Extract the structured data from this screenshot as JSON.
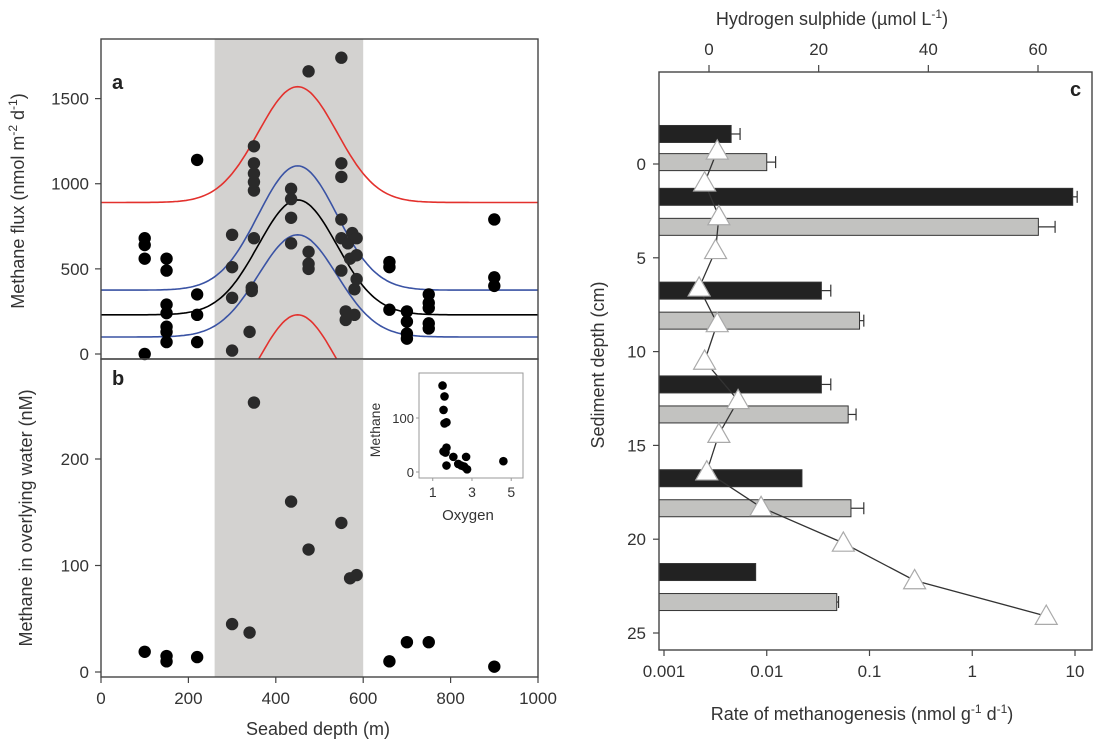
{
  "chart_data": [
    {
      "panel": "a",
      "type": "scatter",
      "title": "",
      "xlabel": "Seabed depth (m)",
      "ylabel": "Methane flux (nmol m-2 d-1)",
      "ylabel_parts": {
        "base": "Methane flux (nmol m",
        "sup1": "-2",
        "mid": " d",
        "sup2": "-1",
        "end": ")"
      },
      "xlim": [
        0,
        1000
      ],
      "ylim": [
        0,
        1850
      ],
      "xticks": [
        0,
        200,
        400,
        600,
        800,
        1000
      ],
      "yticks": [
        0,
        500,
        1000,
        1500
      ],
      "ytick_labels": [
        "0",
        "500",
        "1000",
        "1500"
      ],
      "shaded_region": {
        "x_from": 260,
        "x_to": 600,
        "color": "#d3d2d0"
      },
      "points": [
        [
          100,
          0
        ],
        [
          100,
          560
        ],
        [
          100,
          640
        ],
        [
          100,
          680
        ],
        [
          150,
          70
        ],
        [
          150,
          130
        ],
        [
          150,
          160
        ],
        [
          150,
          240
        ],
        [
          150,
          290
        ],
        [
          150,
          490
        ],
        [
          150,
          560
        ],
        [
          220,
          70
        ],
        [
          220,
          230
        ],
        [
          220,
          350
        ],
        [
          220,
          1140
        ],
        [
          300,
          20
        ],
        [
          300,
          330
        ],
        [
          300,
          510
        ],
        [
          300,
          700
        ],
        [
          340,
          130
        ],
        [
          345,
          370
        ],
        [
          345,
          390
        ],
        [
          350,
          680
        ],
        [
          350,
          960
        ],
        [
          350,
          1010
        ],
        [
          350,
          1060
        ],
        [
          350,
          1120
        ],
        [
          350,
          1220
        ],
        [
          435,
          650
        ],
        [
          435,
          800
        ],
        [
          435,
          910
        ],
        [
          435,
          970
        ],
        [
          475,
          500
        ],
        [
          475,
          530
        ],
        [
          475,
          600
        ],
        [
          475,
          1660
        ],
        [
          550,
          490
        ],
        [
          550,
          680
        ],
        [
          550,
          790
        ],
        [
          550,
          1040
        ],
        [
          550,
          1120
        ],
        [
          550,
          1740
        ],
        [
          560,
          200
        ],
        [
          560,
          250
        ],
        [
          565,
          650
        ],
        [
          570,
          560
        ],
        [
          575,
          710
        ],
        [
          580,
          230
        ],
        [
          580,
          380
        ],
        [
          585,
          440
        ],
        [
          585,
          580
        ],
        [
          585,
          680
        ],
        [
          660,
          260
        ],
        [
          660,
          510
        ],
        [
          660,
          540
        ],
        [
          700,
          90
        ],
        [
          700,
          120
        ],
        [
          700,
          190
        ],
        [
          700,
          250
        ],
        [
          750,
          150
        ],
        [
          750,
          180
        ],
        [
          750,
          270
        ],
        [
          750,
          300
        ],
        [
          750,
          350
        ],
        [
          900,
          400
        ],
        [
          900,
          450
        ],
        [
          900,
          790
        ]
      ],
      "series": [
        {
          "name": "fit",
          "color": "#000000",
          "baseline": 230,
          "peak": 905,
          "center": 450,
          "width": 90
        },
        {
          "name": "confidence-upper",
          "color": "#3a53a4",
          "baseline": 375,
          "peak": 1105,
          "center": 450,
          "width": 90
        },
        {
          "name": "confidence-lower",
          "color": "#3a53a4",
          "baseline": 100,
          "peak": 700,
          "center": 450,
          "width": 90
        },
        {
          "name": "prediction-upper",
          "color": "#e3312d",
          "baseline": 890,
          "peak": 1570,
          "center": 450,
          "width": 90
        },
        {
          "name": "prediction-lower",
          "color": "#e3312d",
          "baseline": -440,
          "peak": 230,
          "center": 450,
          "width": 90
        }
      ]
    },
    {
      "panel": "b",
      "type": "scatter",
      "xlabel": "Seabed depth (m)",
      "ylabel": "Methane in overlying water  (nM)",
      "xlim": [
        0,
        1000
      ],
      "ylim": [
        -5,
        295
      ],
      "xticks": [
        0,
        200,
        400,
        600,
        800,
        1000
      ],
      "xtick_labels": [
        "0",
        "200",
        "400",
        "600",
        "800",
        "1000"
      ],
      "yticks": [
        0,
        100,
        200
      ],
      "ytick_labels": [
        "0",
        "100",
        "200"
      ],
      "shaded_region": {
        "x_from": 260,
        "x_to": 600,
        "color": "#d3d2d0"
      },
      "points": [
        [
          100,
          19
        ],
        [
          150,
          10
        ],
        [
          150,
          15
        ],
        [
          220,
          14
        ],
        [
          300,
          45
        ],
        [
          340,
          37
        ],
        [
          350,
          253
        ],
        [
          435,
          160
        ],
        [
          475,
          115
        ],
        [
          550,
          140
        ],
        [
          570,
          88
        ],
        [
          585,
          91
        ],
        [
          660,
          10
        ],
        [
          700,
          28
        ],
        [
          750,
          28
        ],
        [
          900,
          5
        ]
      ],
      "inset": {
        "type": "scatter",
        "xlabel": "Oxygen",
        "ylabel": "Methane",
        "xlim": [
          0.3,
          5.6
        ],
        "ylim": [
          -10,
          180
        ],
        "xticks": [
          1,
          3,
          5
        ],
        "xtick_labels": [
          "1",
          "3",
          "5"
        ],
        "yticks": [
          0,
          100
        ],
        "ytick_labels": [
          "0",
          "100"
        ],
        "points": [
          [
            1.5,
            160
          ],
          [
            1.6,
            140
          ],
          [
            1.55,
            115
          ],
          [
            1.6,
            90
          ],
          [
            1.7,
            92
          ],
          [
            1.7,
            45
          ],
          [
            1.55,
            38
          ],
          [
            1.65,
            36
          ],
          [
            1.7,
            12
          ],
          [
            2.05,
            28
          ],
          [
            2.3,
            15
          ],
          [
            2.45,
            12
          ],
          [
            2.6,
            10
          ],
          [
            2.7,
            28
          ],
          [
            2.75,
            5
          ],
          [
            4.6,
            20
          ]
        ]
      }
    },
    {
      "panel": "c",
      "type": "bar",
      "orientation": "horizontal",
      "xlabel": "Rate of methanogenesis (nmol g-1 d-1)",
      "xlabel_parts": {
        "base": "Rate of methanogenesis (nmol g",
        "sup1": "-1",
        "mid": " d",
        "sup2": "-1",
        "end": ")"
      },
      "ylabel": "Sediment depth (cm)",
      "xscale": "log",
      "xlim": [
        0.00091,
        14
      ],
      "xticks": [
        0.001,
        0.01,
        0.1,
        1,
        10
      ],
      "xtick_labels": [
        "0.001",
        "0.01",
        "0.1",
        "1",
        "10"
      ],
      "ylim": [
        -4.5,
        26
      ],
      "yticks": [
        0,
        5,
        10,
        15,
        20,
        25
      ],
      "ytick_labels": [
        "0",
        "5",
        "10",
        "15",
        "20",
        "25"
      ],
      "top_axis": {
        "label": "Hydrogen sulphide (µmol L-1)",
        "label_parts": {
          "base": "Hydrogen sulphide (µmol L",
          "sup": "-1",
          "end": ")"
        },
        "xlim": [
          -9,
          70
        ],
        "xticks": [
          0,
          20,
          40,
          60
        ],
        "xtick_labels": [
          "0",
          "20",
          "40",
          "60"
        ]
      },
      "bar_series": [
        {
          "name": "dark",
          "color": "#222222",
          "bars": [
            {
              "depth": -1.6,
              "value": 0.0045,
              "error_hi": 0.0055
            },
            {
              "depth": 1.75,
              "value": 9.5,
              "error_hi": 10.5
            },
            {
              "depth": 6.75,
              "value": 0.034,
              "error_hi": 0.042
            },
            {
              "depth": 11.75,
              "value": 0.034,
              "error_hi": 0.042
            },
            {
              "depth": 16.75,
              "value": 0.022,
              "error_hi": null
            },
            {
              "depth": 21.75,
              "value": 0.0078,
              "error_hi": null
            }
          ]
        },
        {
          "name": "light",
          "color": "#c2c2c0",
          "bars": [
            {
              "depth": -0.1,
              "value": 0.01,
              "error_hi": 0.0122
            },
            {
              "depth": 3.35,
              "value": 4.4,
              "error_hi": 6.4
            },
            {
              "depth": 8.35,
              "value": 0.08,
              "error_hi": 0.088
            },
            {
              "depth": 13.35,
              "value": 0.062,
              "error_hi": 0.074
            },
            {
              "depth": 18.35,
              "value": 0.066,
              "error_hi": 0.088
            },
            {
              "depth": 23.35,
              "value": 0.048,
              "error_hi": 0.05
            }
          ]
        }
      ],
      "line_series": {
        "name": "Hydrogen sulphide",
        "marker": "open-triangle",
        "points": [
          [
            1.5,
            -0.7
          ],
          [
            -0.8,
            1.0
          ],
          [
            1.8,
            2.8
          ],
          [
            1.2,
            4.6
          ],
          [
            -1.8,
            6.6
          ],
          [
            1.5,
            8.5
          ],
          [
            -0.8,
            10.5
          ],
          [
            5.3,
            12.6
          ],
          [
            1.8,
            14.4
          ],
          [
            -0.4,
            16.4
          ],
          [
            9.5,
            18.3
          ],
          [
            24.5,
            20.2
          ],
          [
            37.5,
            22.2
          ],
          [
            61.5,
            24.1
          ]
        ]
      }
    }
  ]
}
